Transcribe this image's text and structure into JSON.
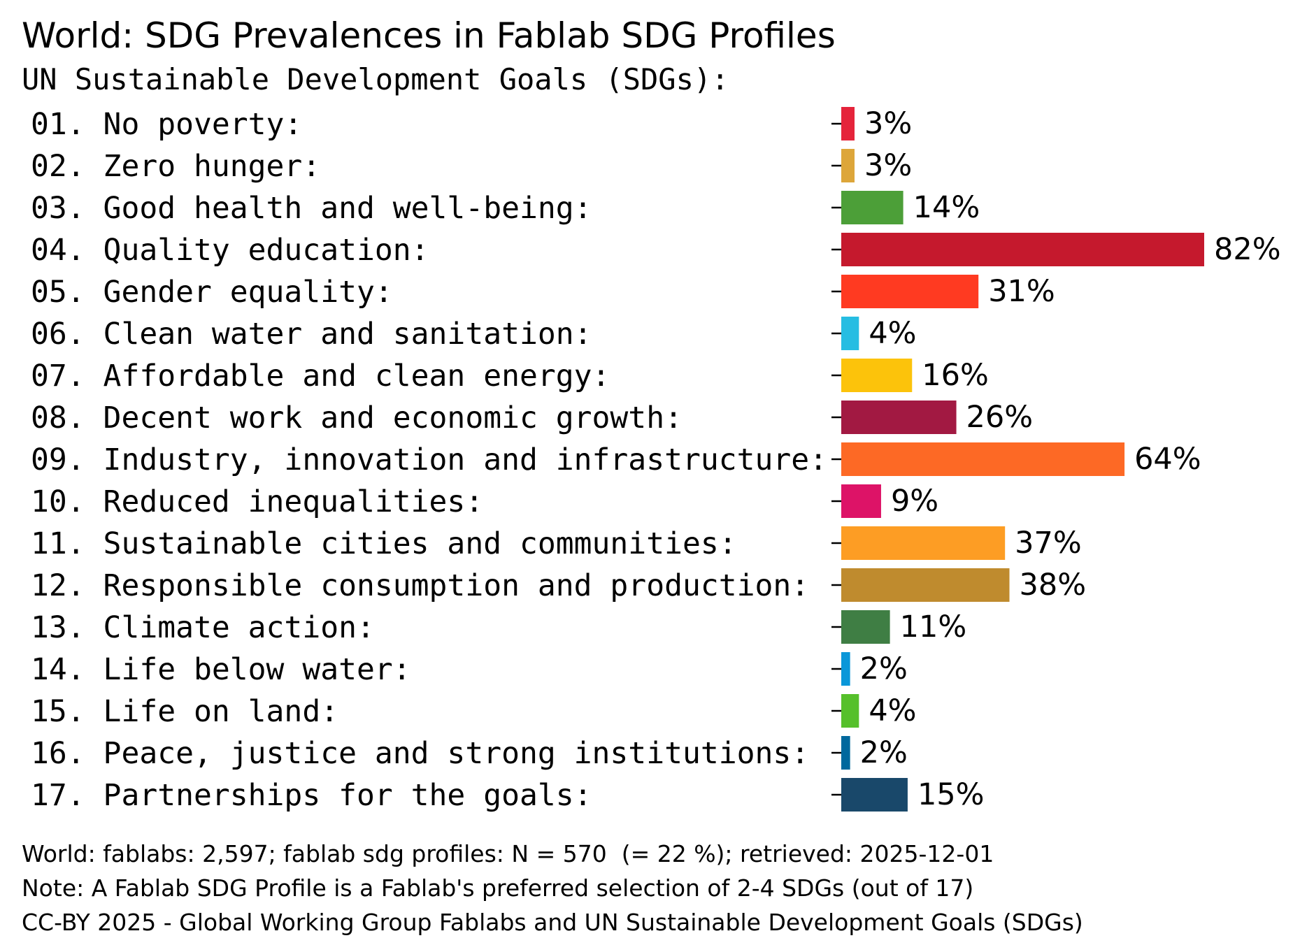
{
  "chart_data": {
    "type": "bar",
    "orientation": "horizontal",
    "title": "World: SDG Prevalences in Fablab SDG Profiles",
    "subtitle": "UN Sustainable Development Goals (SDGs):",
    "categories": [
      "01. No poverty:",
      "02. Zero hunger:",
      "03. Good health and well-being:",
      "04. Quality education:",
      "05. Gender equality:",
      "06. Clean water and sanitation:",
      "07. Affordable and clean energy:",
      "08. Decent work and economic growth:",
      "09. Industry, innovation and infrastructure:",
      "10. Reduced inequalities:",
      "11. Sustainable cities and communities:",
      "12. Responsible consumption and production:",
      "13. Climate action:",
      "14. Life below water:",
      "15. Life on land:",
      "16. Peace, justice and strong institutions:",
      "17. Partnerships for the goals:"
    ],
    "values": [
      3,
      3,
      14,
      82,
      31,
      4,
      16,
      26,
      64,
      9,
      37,
      38,
      11,
      2,
      4,
      2,
      15
    ],
    "value_labels": [
      "3%",
      "3%",
      "14%",
      "82%",
      "31%",
      "4%",
      "16%",
      "26%",
      "64%",
      "9%",
      "37%",
      "38%",
      "11%",
      "2%",
      "4%",
      "2%",
      "15%"
    ],
    "colors": [
      "#e5243b",
      "#dda63a",
      "#4c9f38",
      "#c5192d",
      "#ff3a21",
      "#26bde2",
      "#fcc30b",
      "#a21942",
      "#fd6925",
      "#dd1367",
      "#fd9d24",
      "#bf8b2e",
      "#3f7e44",
      "#0a97d9",
      "#56c02b",
      "#00689d",
      "#19486a"
    ],
    "xlim": [
      0,
      82
    ],
    "xlabel": "",
    "ylabel": "",
    "grid": false,
    "legend": "none"
  },
  "footer": {
    "line1": "World: fablabs: 2,597; fablab sdg profiles: N = 570  (= 22 %); retrieved: 2025-12-01",
    "line2": "Note: A Fablab SDG Profile is a Fablab's preferred selection of 2-4 SDGs (out of 17)",
    "line3": "CC-BY 2025 - Global Working Group Fablabs and UN Sustainable Development Goals (SDGs)"
  }
}
